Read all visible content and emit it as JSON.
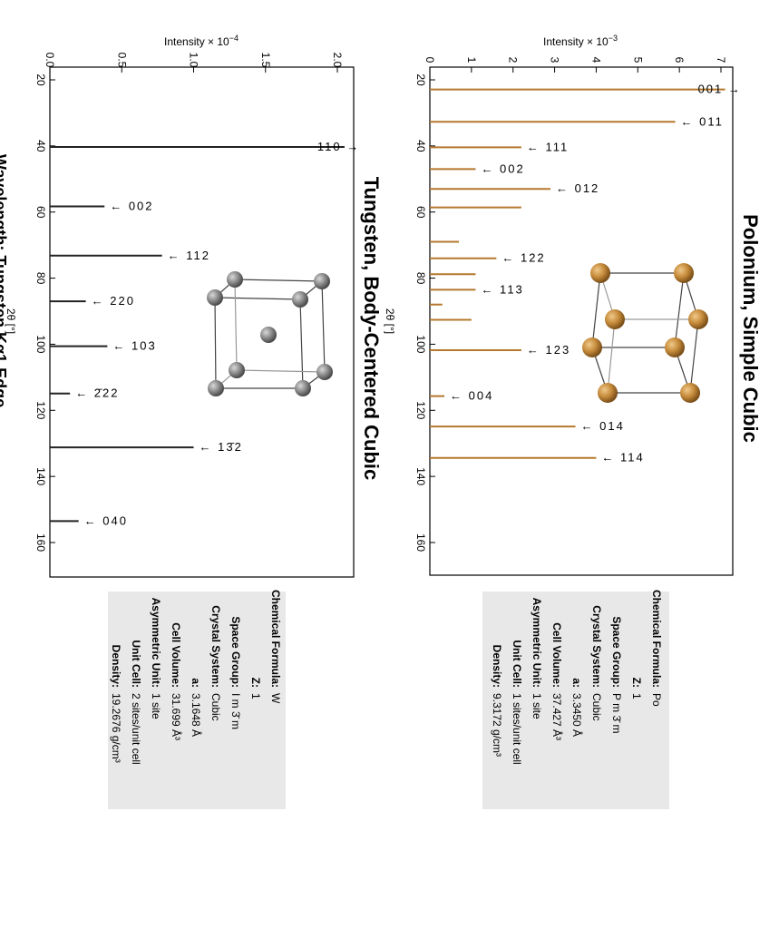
{
  "xlabel": "2θ [°]",
  "chart_data": [
    {
      "type": "bar",
      "title": "Polonium, Simple Cubic",
      "ylabel": "Intensity × 10",
      "ylabel_exp": "−3",
      "xlim": [
        20,
        170
      ],
      "ylim": [
        0,
        7.3
      ],
      "xticks": [
        20,
        40,
        60,
        80,
        100,
        120,
        140,
        160
      ],
      "yticks": [
        0,
        1,
        2,
        3,
        4,
        5,
        6,
        7
      ],
      "color": "#b5782d",
      "peaks": [
        {
          "x": 22.9,
          "y": 7.1,
          "label": "001",
          "dir": "right"
        },
        {
          "x": 32.7,
          "y": 5.9,
          "label": "011",
          "dir": "left"
        },
        {
          "x": 40.4,
          "y": 2.2,
          "label": "111",
          "dir": "left"
        },
        {
          "x": 47.0,
          "y": 1.1,
          "label": "002",
          "dir": "left"
        },
        {
          "x": 53.0,
          "y": 2.9,
          "label": "012",
          "dir": "left"
        },
        {
          "x": 58.6,
          "y": 2.2
        },
        {
          "x": 69.0,
          "y": 0.7
        },
        {
          "x": 74.0,
          "y": 1.6,
          "label": "122",
          "dir": "left"
        },
        {
          "x": 78.8,
          "y": 1.1
        },
        {
          "x": 83.5,
          "y": 1.1,
          "label": "113",
          "dir": "left"
        },
        {
          "x": 88.0,
          "y": 0.3
        },
        {
          "x": 92.6,
          "y": 1.0
        },
        {
          "x": 101.8,
          "y": 2.2,
          "label": "123",
          "dir": "left"
        },
        {
          "x": 115.7,
          "y": 0.35,
          "label": "004",
          "dir": "left"
        },
        {
          "x": 124.9,
          "y": 3.5,
          "label": "014",
          "dir": "left"
        },
        {
          "x": 134.4,
          "y": 4.0,
          "label": "114",
          "dir": "left"
        }
      ],
      "info": [
        {
          "label": "Chemical Formula:",
          "value": "Po"
        },
        {
          "label": "Z:",
          "value": "1"
        },
        {
          "label": "Space Group:",
          "value": "P m 3̄ m"
        },
        {
          "label": "Crystal System:",
          "value": "Cubic"
        },
        {
          "label": "a:",
          "value": "3.3450 Å"
        },
        {
          "label": "Cell Volume:",
          "value": "37.427 Å³"
        },
        {
          "label": "Asymmetric Unit:",
          "value": "1 site"
        },
        {
          "label": "Unit Cell:",
          "value": "1 sites/unit cell"
        },
        {
          "label": "Density:",
          "value": "9.3172 g/cm³"
        }
      ]
    },
    {
      "type": "bar",
      "title": "Tungsten, Body-Centered Cubic",
      "ylabel": "Intensity × 10",
      "ylabel_exp": "−4",
      "xlim": [
        20,
        170
      ],
      "ylim": [
        0,
        2.1
      ],
      "xticks": [
        20,
        40,
        60,
        80,
        100,
        120,
        140,
        160
      ],
      "yticks": [
        0.0,
        0.5,
        1.0,
        1.5,
        2.0
      ],
      "ytick_labels": [
        "0.0",
        "0.5",
        "1.0",
        "1.5",
        "2.0"
      ],
      "color": "#222222",
      "peaks": [
        {
          "x": 40.3,
          "y": 2.05,
          "label": "110",
          "dir": "right"
        },
        {
          "x": 58.3,
          "y": 0.38,
          "label": "002",
          "dir": "left"
        },
        {
          "x": 73.2,
          "y": 0.78,
          "label": "112",
          "dir": "left"
        },
        {
          "x": 87.0,
          "y": 0.25,
          "label": "220",
          "dir": "left"
        },
        {
          "x": 100.6,
          "y": 0.4,
          "label": "103",
          "dir": "left"
        },
        {
          "x": 114.9,
          "y": 0.14,
          "label": "2̄22",
          "dir": "left"
        },
        {
          "x": 131.2,
          "y": 1.0,
          "label": "13̄2",
          "dir": "left"
        },
        {
          "x": 153.5,
          "y": 0.2,
          "label": "040",
          "dir": "left"
        }
      ],
      "info": [
        {
          "label": "Chemical Formula:",
          "value": "W"
        },
        {
          "label": "Z:",
          "value": "1"
        },
        {
          "label": "Space Group:",
          "value": "I m 3̄ m"
        },
        {
          "label": "Crystal System:",
          "value": "Cubic"
        },
        {
          "label": "a:",
          "value": "3.1648 Å"
        },
        {
          "label": "Cell Volume:",
          "value": "31.699 Å³"
        },
        {
          "label": "Asymmetric Unit:",
          "value": "1 site"
        },
        {
          "label": "Unit Cell:",
          "value": "2 sites/unit cell"
        },
        {
          "label": "Density:",
          "value": "19.2676 g/cm³"
        }
      ]
    }
  ],
  "footer_fragment": "Wavelength: Tungsten Kα1 Edge"
}
